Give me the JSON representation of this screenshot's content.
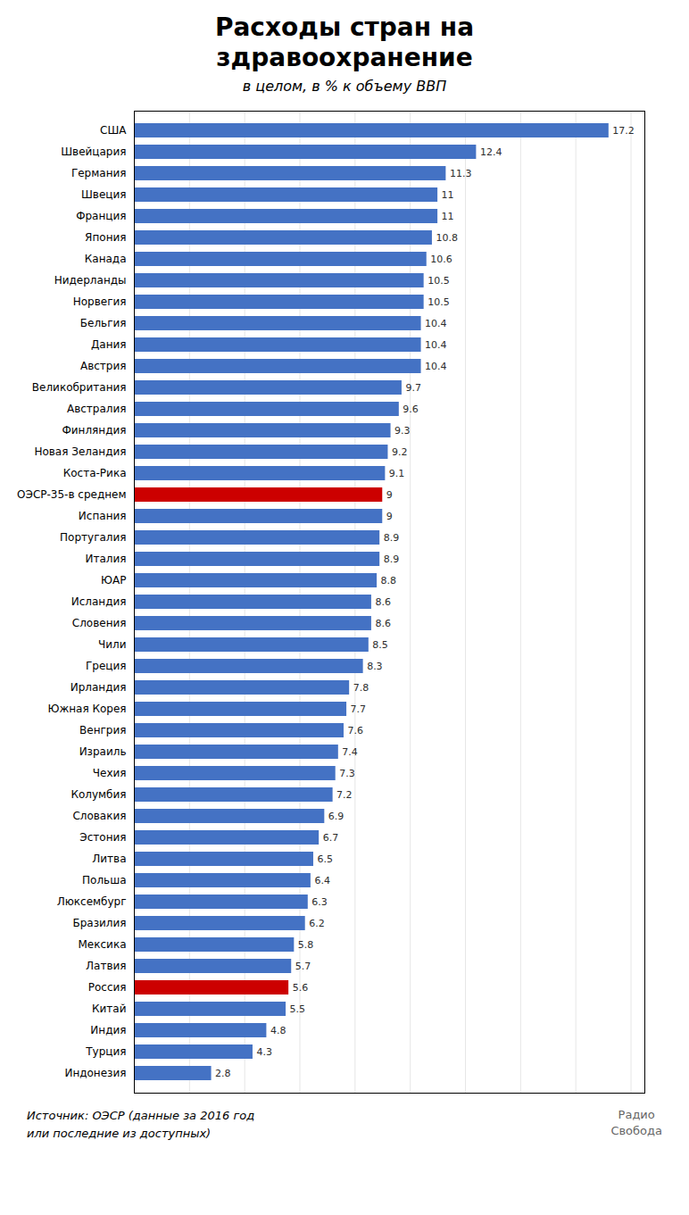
{
  "chart_data": {
    "type": "bar",
    "orientation": "horizontal",
    "title": "Расходы стран на\nздравоохранение",
    "subtitle": "в целом, в % к объему ВВП",
    "annotations": [
      "Источник: ОЭСР (данные за 2016 год\nили последние из доступных)",
      "Радио\nСвобода"
    ],
    "categories": [
      "США",
      "Швейцария",
      "Германия",
      "Швеция",
      "Франция",
      "Япония",
      "Канада",
      "Нидерланды",
      "Норвегия",
      "Бельгия",
      "Дания",
      "Австрия",
      "Великобритания",
      "Австралия",
      "Финляндия",
      "Новая Зеландия",
      "Коста-Рика",
      "ОЭСР-35-в среднем",
      "Испания",
      "Португалия",
      "Италия",
      "ЮАР",
      "Исландия",
      "Словения",
      "Чили",
      "Греция",
      "Ирландия",
      "Южная Корея",
      "Венгрия",
      "Израиль",
      "Чехия",
      "Колумбия",
      "Словакия",
      "Эстония",
      "Литва",
      "Польша",
      "Люксембург",
      "Бразилия",
      "Мексика",
      "Латвия",
      "Россия",
      "Китай",
      "Индия",
      "Турция",
      "Индонезия"
    ],
    "values": [
      17.2,
      12.4,
      11.3,
      11.0,
      11.0,
      10.8,
      10.6,
      10.5,
      10.5,
      10.4,
      10.4,
      10.4,
      9.7,
      9.6,
      9.3,
      9.2,
      9.1,
      9.0,
      9.0,
      8.9,
      8.9,
      8.8,
      8.6,
      8.6,
      8.5,
      8.3,
      7.8,
      7.7,
      7.6,
      7.4,
      7.3,
      7.2,
      6.9,
      6.7,
      6.5,
      6.4,
      6.3,
      6.2,
      5.8,
      5.7,
      5.6,
      5.5,
      4.8,
      4.3,
      2.8
    ],
    "value_labels": [
      "17.2",
      "12.4",
      "11.3",
      "11",
      "11",
      "10.8",
      "10.6",
      "10.5",
      "10.5",
      "10.4",
      "10.4",
      "10.4",
      "9.7",
      "9.6",
      "9.3",
      "9.2",
      "9.1",
      "9",
      "9",
      "8.9",
      "8.9",
      "8.8",
      "8.6",
      "8.6",
      "8.5",
      "8.3",
      "7.8",
      "7.7",
      "7.6",
      "7.4",
      "7.3",
      "7.2",
      "6.9",
      "6.7",
      "6.5",
      "6.4",
      "6.3",
      "6.2",
      "5.8",
      "5.7",
      "5.6",
      "5.5",
      "4.8",
      "4.3",
      "2.8"
    ],
    "colors": [
      "#4472c4",
      "#4472c4",
      "#4472c4",
      "#4472c4",
      "#4472c4",
      "#4472c4",
      "#4472c4",
      "#4472c4",
      "#4472c4",
      "#4472c4",
      "#4472c4",
      "#4472c4",
      "#4472c4",
      "#4472c4",
      "#4472c4",
      "#4472c4",
      "#4472c4",
      "#cc0000",
      "#4472c4",
      "#4472c4",
      "#4472c4",
      "#4472c4",
      "#4472c4",
      "#4472c4",
      "#4472c4",
      "#4472c4",
      "#4472c4",
      "#4472c4",
      "#4472c4",
      "#4472c4",
      "#4472c4",
      "#4472c4",
      "#4472c4",
      "#4472c4",
      "#4472c4",
      "#4472c4",
      "#4472c4",
      "#4472c4",
      "#4472c4",
      "#4472c4",
      "#cc0000",
      "#4472c4",
      "#4472c4",
      "#4472c4",
      "#4472c4"
    ],
    "xlim": [
      0,
      18.5
    ],
    "xticks": [
      2,
      4,
      6,
      8,
      10,
      12,
      14,
      16,
      18
    ],
    "grid": true,
    "data_labels": true,
    "tick_labels": "y"
  }
}
